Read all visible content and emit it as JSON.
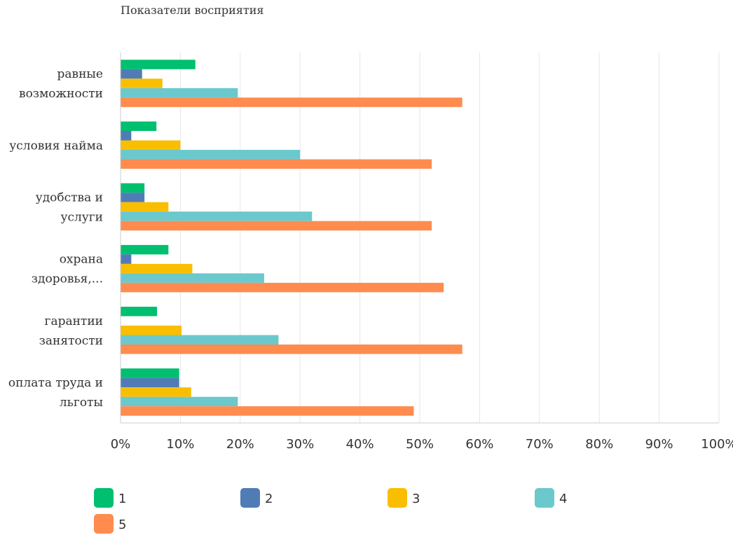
{
  "chart_data": {
    "type": "bar",
    "orientation": "horizontal",
    "title": "Показатели восприятия",
    "categories": [
      [
        "равные",
        "возможности"
      ],
      [
        "условия найма"
      ],
      [
        "удобства и",
        "услуги"
      ],
      [
        "охрана",
        "здоровья,..."
      ],
      [
        "гарантии",
        "занятости"
      ],
      [
        "оплата труда и",
        "льготы"
      ]
    ],
    "series": [
      {
        "name": "1",
        "color": "#00bf6f",
        "values": [
          12.5,
          6.0,
          4.0,
          8.0,
          6.1,
          9.8
        ]
      },
      {
        "name": "2",
        "color": "#507cb6",
        "values": [
          3.6,
          1.8,
          4.0,
          1.8,
          0,
          9.8
        ]
      },
      {
        "name": "3",
        "color": "#f9be00",
        "values": [
          7.0,
          10.0,
          8.0,
          12.0,
          10.2,
          11.8
        ]
      },
      {
        "name": "4",
        "color": "#6bc8cd",
        "values": [
          19.6,
          30.0,
          32.0,
          24.0,
          26.4,
          19.6
        ]
      },
      {
        "name": "5",
        "color": "#ff8b4f",
        "values": [
          57.1,
          52.0,
          52.0,
          54.0,
          57.1,
          49.0
        ]
      }
    ],
    "xlim": [
      0,
      100
    ],
    "x_ticks": [
      "0%",
      "10%",
      "20%",
      "30%",
      "40%",
      "50%",
      "60%",
      "70%",
      "80%",
      "90%",
      "100%"
    ],
    "grid": true,
    "legend_position": "bottom"
  }
}
